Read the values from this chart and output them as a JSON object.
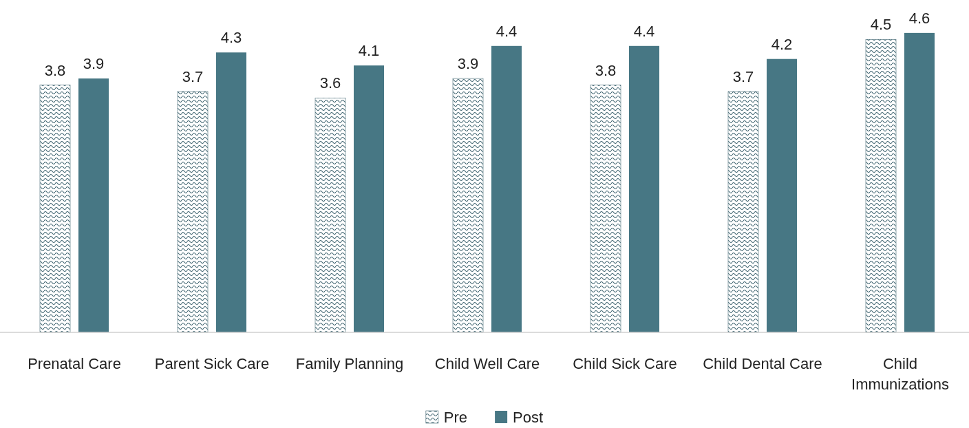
{
  "chart_data": {
    "type": "bar",
    "categories": [
      "Prenatal Care",
      "Parent Sick Care",
      "Family Planning",
      "Child Well Care",
      "Child Sick Care",
      "Child Dental Care",
      "Child Immunizations"
    ],
    "series": [
      {
        "name": "Pre",
        "color": "#3f6470",
        "values": [
          3.8,
          3.7,
          3.6,
          3.9,
          3.8,
          3.7,
          4.5
        ]
      },
      {
        "name": "Post",
        "color": "#477784",
        "values": [
          3.9,
          4.3,
          4.1,
          4.4,
          4.4,
          4.2,
          4.6
        ]
      }
    ],
    "data_labels": true,
    "legend": "bottom"
  }
}
